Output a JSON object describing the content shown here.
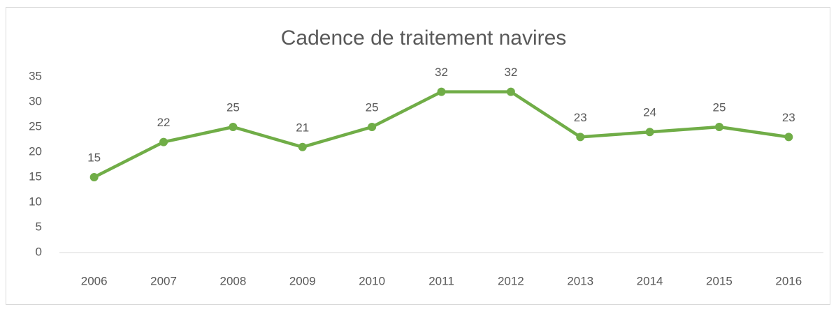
{
  "chart_data": {
    "type": "line",
    "title": "Cadence de traitement navires",
    "categories": [
      "2006",
      "2007",
      "2008",
      "2009",
      "2010",
      "2011",
      "2012",
      "2013",
      "2014",
      "2015",
      "2016"
    ],
    "values": [
      15,
      22,
      25,
      21,
      25,
      32,
      32,
      23,
      24,
      25,
      23
    ],
    "color": "#70ad47",
    "ylim": [
      0,
      35
    ],
    "yticks": [
      0,
      5,
      10,
      15,
      20,
      25,
      30,
      35
    ],
    "grid": false,
    "data_labels": true
  }
}
